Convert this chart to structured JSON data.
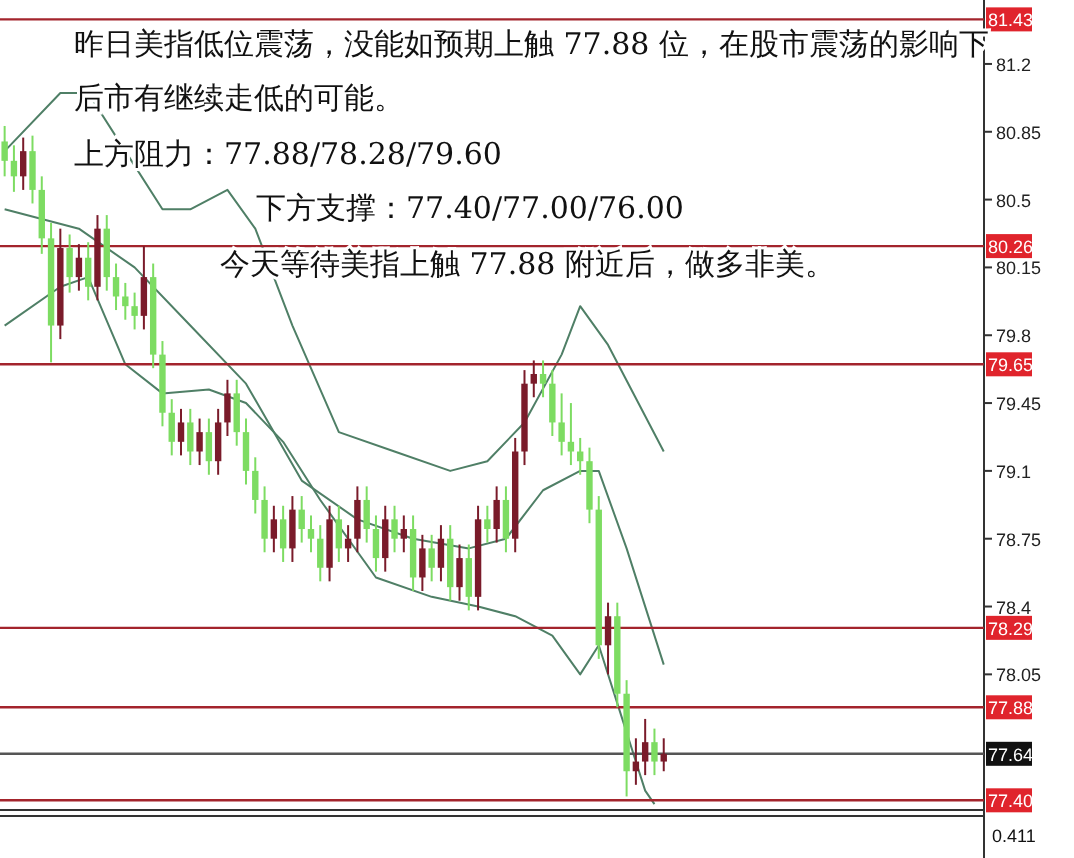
{
  "chart_data": {
    "type": "candlestick",
    "categories": [
      null,
      null,
      null,
      null,
      null,
      null,
      null,
      null,
      null,
      null,
      null,
      null,
      null,
      null,
      null,
      null,
      null,
      null,
      null,
      null,
      null,
      null,
      null,
      null,
      null,
      null,
      null,
      null,
      null,
      null,
      null,
      null,
      null,
      null,
      null,
      null,
      null,
      null,
      null,
      null,
      null,
      null,
      null,
      null,
      null,
      null,
      null,
      null,
      null,
      null,
      null,
      null,
      null,
      null,
      null,
      null,
      null,
      null,
      null,
      null,
      null,
      null,
      null,
      null,
      null,
      null,
      null,
      null,
      null,
      null,
      null,
      null,
      null,
      null,
      null,
      null,
      null,
      null,
      null,
      null,
      null,
      null,
      null,
      null,
      null,
      null,
      null,
      null,
      null,
      null,
      null,
      null,
      null,
      null,
      null,
      null,
      null,
      null,
      null,
      null,
      null,
      null,
      null,
      null,
      null,
      null
    ],
    "ohlc": [
      [
        80.8,
        80.88,
        80.62,
        80.7
      ],
      [
        80.7,
        80.78,
        80.54,
        80.62
      ],
      [
        80.62,
        80.82,
        80.55,
        80.75
      ],
      [
        80.75,
        80.83,
        80.48,
        80.55
      ],
      [
        80.55,
        80.62,
        80.22,
        80.3
      ],
      [
        80.3,
        80.38,
        79.66,
        79.85
      ],
      [
        79.85,
        80.35,
        79.78,
        80.25
      ],
      [
        80.25,
        80.32,
        80.02,
        80.1
      ],
      [
        80.1,
        80.27,
        80.03,
        80.2
      ],
      [
        80.2,
        80.28,
        79.98,
        80.05
      ],
      [
        80.05,
        80.42,
        79.98,
        80.35
      ],
      [
        80.35,
        80.42,
        80.03,
        80.1
      ],
      [
        80.1,
        80.17,
        79.93,
        80.0
      ],
      [
        80.0,
        80.07,
        79.88,
        79.95
      ],
      [
        79.95,
        80.02,
        79.83,
        79.9
      ],
      [
        79.9,
        80.26,
        79.83,
        80.1
      ],
      [
        80.1,
        80.17,
        79.63,
        79.7
      ],
      [
        79.7,
        79.77,
        79.33,
        79.4
      ],
      [
        79.4,
        79.47,
        79.18,
        79.25
      ],
      [
        79.25,
        79.42,
        79.18,
        79.35
      ],
      [
        79.35,
        79.42,
        79.13,
        79.2
      ],
      [
        79.2,
        79.37,
        79.13,
        79.3
      ],
      [
        79.3,
        79.37,
        79.08,
        79.15
      ],
      [
        79.15,
        79.42,
        79.08,
        79.35
      ],
      [
        79.35,
        79.57,
        79.28,
        79.5
      ],
      [
        79.5,
        79.57,
        79.23,
        79.3
      ],
      [
        79.3,
        79.37,
        79.03,
        79.1
      ],
      [
        79.1,
        79.17,
        78.88,
        78.95
      ],
      [
        78.95,
        79.02,
        78.68,
        78.75
      ],
      [
        78.75,
        78.92,
        78.68,
        78.85
      ],
      [
        78.85,
        78.92,
        78.63,
        78.7
      ],
      [
        78.7,
        78.97,
        78.63,
        78.9
      ],
      [
        78.9,
        78.97,
        78.73,
        78.8
      ],
      [
        78.8,
        78.87,
        78.68,
        78.75
      ],
      [
        78.75,
        78.82,
        78.53,
        78.6
      ],
      [
        78.6,
        78.92,
        78.53,
        78.85
      ],
      [
        78.85,
        78.92,
        78.63,
        78.7
      ],
      [
        78.7,
        78.82,
        78.63,
        78.75
      ],
      [
        78.75,
        79.02,
        78.68,
        78.95
      ],
      [
        78.95,
        79.02,
        78.73,
        78.8
      ],
      [
        78.8,
        78.87,
        78.58,
        78.65
      ],
      [
        78.65,
        78.92,
        78.58,
        78.85
      ],
      [
        78.85,
        78.92,
        78.68,
        78.75
      ],
      [
        78.75,
        78.87,
        78.68,
        78.8
      ],
      [
        78.8,
        78.87,
        78.48,
        78.55
      ],
      [
        78.55,
        78.77,
        78.48,
        78.7
      ],
      [
        78.7,
        78.77,
        78.53,
        78.6
      ],
      [
        78.6,
        78.82,
        78.53,
        78.75
      ],
      [
        78.75,
        78.82,
        78.43,
        78.5
      ],
      [
        78.5,
        78.72,
        78.43,
        78.65
      ],
      [
        78.65,
        78.72,
        78.38,
        78.45
      ],
      [
        78.45,
        78.92,
        78.38,
        78.85
      ],
      [
        78.85,
        78.92,
        78.73,
        78.8
      ],
      [
        78.8,
        79.02,
        78.73,
        78.95
      ],
      [
        78.95,
        79.02,
        78.68,
        78.75
      ],
      [
        78.75,
        79.27,
        78.68,
        79.2
      ],
      [
        79.2,
        79.62,
        79.13,
        79.55
      ],
      [
        79.55,
        79.67,
        79.48,
        79.6
      ],
      [
        79.6,
        79.67,
        79.48,
        79.55
      ],
      [
        79.55,
        79.62,
        79.28,
        79.35
      ],
      [
        79.35,
        79.5,
        79.18,
        79.25
      ],
      [
        79.25,
        79.45,
        79.13,
        79.2
      ],
      [
        79.2,
        79.27,
        79.08,
        79.15
      ],
      [
        79.15,
        79.22,
        78.83,
        78.9
      ],
      [
        78.9,
        78.97,
        78.13,
        78.2
      ],
      [
        78.2,
        78.42,
        78.05,
        78.35
      ],
      [
        78.35,
        78.42,
        77.88,
        77.95
      ],
      [
        77.95,
        78.02,
        77.42,
        77.55
      ],
      [
        77.55,
        77.72,
        77.48,
        77.6
      ],
      [
        77.6,
        77.82,
        77.53,
        77.7
      ],
      [
        77.7,
        77.77,
        77.53,
        77.6
      ],
      [
        77.6,
        77.72,
        77.55,
        77.64
      ],
      null,
      null,
      null,
      null,
      null,
      null,
      null,
      null,
      null,
      null,
      null,
      null,
      null,
      null,
      null,
      null,
      null,
      null,
      null,
      null,
      null,
      null,
      null,
      null,
      null,
      null,
      null,
      null,
      null,
      null,
      null,
      null,
      null,
      null
    ],
    "series": [
      {
        "type": "line",
        "color": "#4f7f66",
        "values": [
          80.75,
          null,
          null,
          null,
          null,
          null,
          81.05,
          null,
          null,
          81.05,
          null,
          null,
          null,
          80.75,
          null,
          null,
          null,
          80.45,
          null,
          null,
          80.45,
          null,
          null,
          null,
          80.55,
          null,
          null,
          80.35,
          null,
          null,
          null,
          79.85,
          null,
          null,
          null,
          null,
          79.3,
          null,
          null,
          null,
          null,
          null,
          79.2,
          null,
          null,
          null,
          null,
          null,
          79.1,
          null,
          null,
          null,
          79.15,
          null,
          null,
          null,
          79.35,
          null,
          null,
          null,
          79.7,
          null,
          79.95,
          null,
          null,
          79.75,
          null,
          null,
          null,
          null,
          null,
          79.2,
          null,
          null,
          null,
          null,
          null,
          null,
          null,
          null,
          null,
          null,
          null,
          null,
          null,
          null,
          null,
          null,
          null,
          null,
          null,
          null,
          null,
          null,
          null,
          null,
          null,
          null,
          null,
          null,
          null,
          null,
          null,
          null,
          null,
          null
        ]
      },
      {
        "type": "line",
        "color": "#4f7f66",
        "values": [
          80.45,
          null,
          null,
          null,
          null,
          null,
          null,
          null,
          80.35,
          null,
          null,
          null,
          null,
          null,
          80.15,
          null,
          null,
          null,
          null,
          null,
          79.85,
          null,
          null,
          null,
          null,
          null,
          79.55,
          null,
          null,
          null,
          null,
          null,
          79.05,
          null,
          null,
          null,
          null,
          null,
          78.85,
          null,
          null,
          null,
          null,
          null,
          78.75,
          null,
          null,
          null,
          null,
          null,
          78.7,
          null,
          null,
          null,
          78.75,
          null,
          null,
          null,
          79.0,
          null,
          null,
          null,
          79.1,
          null,
          79.1,
          null,
          null,
          78.7,
          null,
          null,
          null,
          78.1,
          null,
          null,
          null,
          null,
          null,
          null,
          null,
          null,
          null,
          null,
          null,
          null,
          null,
          null,
          null,
          null,
          null,
          null,
          null,
          null,
          null,
          null,
          null,
          null,
          null,
          null,
          null,
          null,
          null,
          null,
          null,
          null,
          null,
          null
        ]
      },
      {
        "type": "line",
        "color": "#4f7f66",
        "values": [
          79.85,
          null,
          null,
          null,
          null,
          null,
          80.05,
          null,
          null,
          80.1,
          null,
          null,
          null,
          79.65,
          null,
          null,
          null,
          79.5,
          null,
          null,
          null,
          null,
          79.52,
          null,
          null,
          null,
          79.45,
          null,
          null,
          null,
          79.25,
          null,
          null,
          null,
          78.95,
          null,
          null,
          null,
          null,
          null,
          78.55,
          null,
          null,
          null,
          null,
          null,
          78.45,
          null,
          null,
          null,
          null,
          78.4,
          null,
          null,
          null,
          78.35,
          null,
          null,
          null,
          78.25,
          null,
          null,
          78.05,
          null,
          78.2,
          null,
          77.9,
          null,
          null,
          77.45,
          77.38,
          null,
          null,
          null,
          null,
          null,
          null,
          null,
          null,
          null,
          null,
          null,
          null,
          null,
          null,
          null,
          null,
          null,
          null,
          null,
          null,
          null,
          null,
          null,
          null,
          null,
          null,
          null,
          null,
          null,
          null,
          null,
          null,
          null,
          null,
          null
        ]
      }
    ],
    "ylim": [
      77.35,
      81.53
    ],
    "yticks": [
      81.2,
      80.85,
      80.5,
      80.15,
      79.8,
      79.45,
      79.1,
      78.75,
      78.4,
      78.05
    ],
    "tick_labels": "y",
    "ref_lines": [
      {
        "axis": "y",
        "value": 81.43,
        "label": "81.43",
        "color": "#a3242c"
      },
      {
        "axis": "y",
        "value": 80.26,
        "label": "80.26",
        "color": "#a3242c"
      },
      {
        "axis": "y",
        "value": 79.65,
        "label": "79.65",
        "color": "#a3242c"
      },
      {
        "axis": "y",
        "value": 78.29,
        "label": "78.29",
        "color": "#a3242c"
      },
      {
        "axis": "y",
        "value": 77.88,
        "label": "77.88",
        "color": "#a3242c"
      },
      {
        "axis": "y",
        "value": 77.64,
        "label": "77.64",
        "color": "#555555"
      },
      {
        "axis": "y",
        "value": 77.4,
        "label": "77.40",
        "color": "#a3242c"
      }
    ],
    "annotations": [
      "昨日美指低位震荡，没能如预期上触 77.88 位，在股市震荡的影响下",
      "后市有继续走低的可能。",
      "上方阻力：77.88/78.28/79.60",
      "下方支撑：77.40/77.00/76.00",
      "今天等待美指上触 77.88 附近后，做多非美。",
      "0.411"
    ]
  }
}
